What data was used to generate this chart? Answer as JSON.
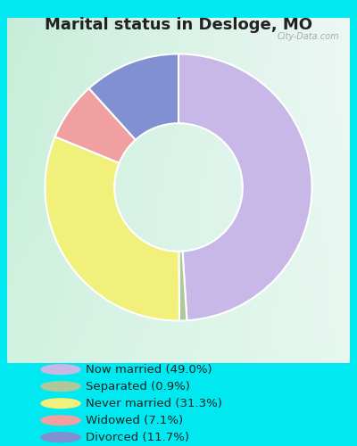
{
  "title": "Marital status in Desloge, MO",
  "title_fontsize": 13,
  "background_outer": "#00e8f0",
  "background_inner_tl": [
    0.78,
    0.93,
    0.85
  ],
  "background_inner_tr": [
    0.93,
    0.97,
    0.96
  ],
  "slices": [
    49.0,
    0.9,
    31.3,
    7.1,
    11.7
  ],
  "colors": [
    "#c8b8e8",
    "#aec89a",
    "#f0f07a",
    "#f0a0a0",
    "#8090d0"
  ],
  "labels": [
    "Now married (49.0%)",
    "Separated (0.9%)",
    "Never married (31.3%)",
    "Widowed (7.1%)",
    "Divorced (11.7%)"
  ],
  "legend_colors": [
    "#c8b8e8",
    "#aec89a",
    "#f0f07a",
    "#f0a0a0",
    "#8090d0"
  ],
  "watermark": "City-Data.com",
  "donut_width": 0.52
}
